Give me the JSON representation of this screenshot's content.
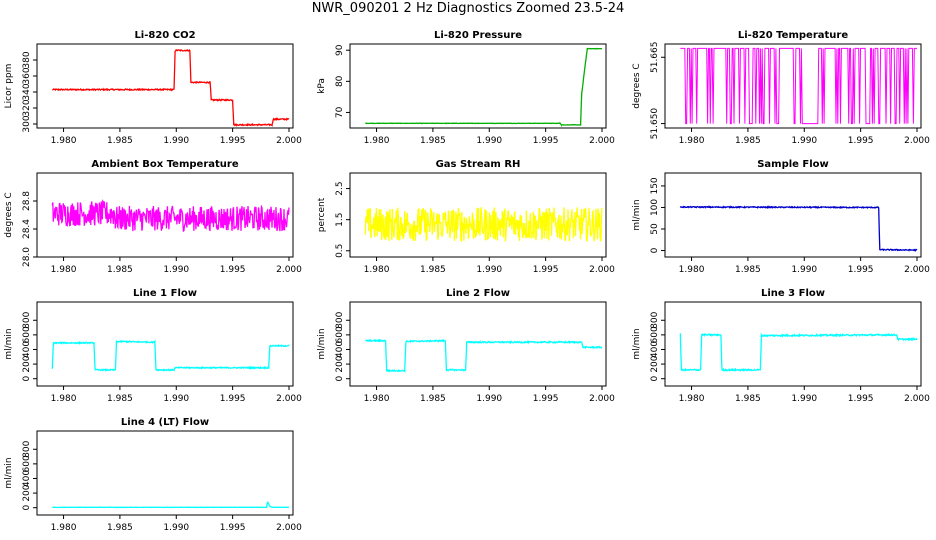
{
  "page_title": "NWR_090201  2 Hz Diagnostics Zoomed 23.5-24",
  "chart_data": [
    {
      "type": "line",
      "title": "Li-820 CO2",
      "ylabel": "Licor ppm",
      "color": "#ff0000",
      "xlim": [
        1.978,
        2.0
      ],
      "ylim": [
        295,
        400
      ],
      "xticks": [
        1.98,
        1.985,
        1.99,
        1.995,
        2.0
      ],
      "xtick_labels": [
        "1.980",
        "1.985",
        "1.990",
        "1.995",
        "2.000"
      ],
      "yticks": [
        300,
        320,
        340,
        360,
        380
      ],
      "ytick_labels": [
        "300",
        "320",
        "340",
        "360",
        "380"
      ],
      "series": [
        {
          "x": [
            1.979,
            1.9898,
            1.9899,
            1.9912,
            1.9913,
            1.993,
            1.9931,
            1.995,
            1.9951,
            1.9985,
            1.9986,
            2.0
          ],
          "y": [
            343,
            343,
            392,
            392,
            352,
            352,
            330,
            330,
            299,
            299,
            306,
            306
          ],
          "noise": 0.8
        }
      ]
    },
    {
      "type": "line",
      "title": "Li-820 Pressure",
      "ylabel": "kPa",
      "color": "#00b000",
      "xlim": [
        1.978,
        2.0
      ],
      "ylim": [
        65,
        92
      ],
      "xticks": [
        1.98,
        1.985,
        1.99,
        1.995,
        2.0
      ],
      "xtick_labels": [
        "1.980",
        "1.985",
        "1.990",
        "1.995",
        "2.000"
      ],
      "yticks": [
        70,
        80,
        90
      ],
      "ytick_labels": [
        "70",
        "80",
        "90"
      ],
      "series": [
        {
          "x": [
            1.979,
            1.9963,
            1.9964,
            1.9981,
            1.9982,
            1.9985,
            1.9987,
            2.0
          ],
          "y": [
            66.5,
            66.5,
            66.0,
            66.0,
            76.0,
            85.0,
            90.5,
            90.5
          ],
          "noise": 0.05
        }
      ]
    },
    {
      "type": "line",
      "title": "Li-820 Temperature",
      "ylabel": "degrees C",
      "color": "#ff00ff",
      "xlim": [
        1.978,
        2.0
      ],
      "ylim": [
        51.649,
        51.668
      ],
      "xticks": [
        1.98,
        1.985,
        1.99,
        1.995,
        2.0
      ],
      "xtick_labels": [
        "1.980",
        "1.985",
        "1.990",
        "1.995",
        "2.000"
      ],
      "yticks": [
        51.65,
        51.665
      ],
      "ytick_labels": [
        "51.650",
        "51.665"
      ],
      "series": [
        {
          "x": [
            1.979,
            2.0
          ],
          "y": [
            51.65,
            51.667
          ],
          "pattern": "binary",
          "gap": [
            1.9898,
            1.9912
          ]
        }
      ]
    },
    {
      "type": "line",
      "title": "Ambient Box Temperature",
      "ylabel": "degrees C",
      "color": "#ff00ff",
      "xlim": [
        1.978,
        2.0
      ],
      "ylim": [
        28.0,
        29.2
      ],
      "xticks": [
        1.98,
        1.985,
        1.99,
        1.995,
        2.0
      ],
      "xtick_labels": [
        "1.980",
        "1.985",
        "1.990",
        "1.995",
        "2.000"
      ],
      "yticks": [
        28.0,
        28.4,
        28.8
      ],
      "ytick_labels": [
        "28.0",
        "28.4",
        "28.8"
      ],
      "series": [
        {
          "x": [
            1.979,
            1.9845,
            1.9846,
            2.0
          ],
          "y": [
            28.62,
            28.62,
            28.55,
            28.55
          ],
          "noise": 0.18
        }
      ]
    },
    {
      "type": "line",
      "title": "Gas Stream RH",
      "ylabel": "percent",
      "color": "#ffff00",
      "xlim": [
        1.978,
        2.0
      ],
      "ylim": [
        0.3,
        3.0
      ],
      "xticks": [
        1.98,
        1.985,
        1.99,
        1.995,
        2.0
      ],
      "xtick_labels": [
        "1.980",
        "1.985",
        "1.990",
        "1.995",
        "2.000"
      ],
      "yticks": [
        0.5,
        1.5,
        2.5
      ],
      "ytick_labels": [
        "0.5",
        "1.5",
        "2.5"
      ],
      "series": [
        {
          "x": [
            1.979,
            2.0
          ],
          "y": [
            1.35,
            1.35
          ],
          "noise": 0.55
        }
      ]
    },
    {
      "type": "line",
      "title": "Sample Flow",
      "ylabel": "ml/min",
      "color": "#0000cc",
      "xlim": [
        1.978,
        2.0
      ],
      "ylim": [
        -15,
        180
      ],
      "xticks": [
        1.98,
        1.985,
        1.99,
        1.995,
        2.0
      ],
      "xtick_labels": [
        "1.980",
        "1.985",
        "1.990",
        "1.995",
        "2.000"
      ],
      "yticks": [
        0,
        50,
        100,
        150
      ],
      "ytick_labels": [
        "0",
        "50",
        "100",
        "150"
      ],
      "series": [
        {
          "x": [
            1.979,
            1.9966,
            1.9967,
            2.0
          ],
          "y": [
            101,
            100,
            2,
            1
          ],
          "noise": 1.2
        }
      ]
    },
    {
      "type": "line",
      "title": "Line 1 Flow",
      "ylabel": "ml/min",
      "color": "#00ffff",
      "xlim": [
        1.978,
        2.0
      ],
      "ylim": [
        -100,
        1050
      ],
      "xticks": [
        1.98,
        1.985,
        1.99,
        1.995,
        2.0
      ],
      "xtick_labels": [
        "1.980",
        "1.985",
        "1.990",
        "1.995",
        "2.000"
      ],
      "yticks": [
        0,
        200,
        400,
        600,
        800
      ],
      "ytick_labels": [
        "0",
        "200",
        "400",
        "600",
        "800"
      ],
      "series": [
        {
          "x": [
            1.979,
            1.9791,
            1.9827,
            1.9828,
            1.9846,
            1.9847,
            1.9881,
            1.9882,
            1.9898,
            1.9899,
            1.9982,
            1.9983,
            2.0
          ],
          "y": [
            130,
            490,
            490,
            120,
            120,
            510,
            500,
            120,
            120,
            150,
            150,
            450,
            450
          ],
          "noise": 8
        }
      ]
    },
    {
      "type": "line",
      "title": "Line 2 Flow",
      "ylabel": "ml/min",
      "color": "#00ffff",
      "xlim": [
        1.978,
        2.0
      ],
      "ylim": [
        -100,
        1050
      ],
      "xticks": [
        1.98,
        1.985,
        1.99,
        1.995,
        2.0
      ],
      "xtick_labels": [
        "1.980",
        "1.985",
        "1.990",
        "1.995",
        "2.000"
      ],
      "yticks": [
        0,
        200,
        400,
        600,
        800
      ],
      "ytick_labels": [
        "0",
        "200",
        "400",
        "600",
        "800"
      ],
      "series": [
        {
          "x": [
            1.979,
            1.9808,
            1.9809,
            1.9825,
            1.9826,
            1.9861,
            1.9862,
            1.9879,
            1.988,
            1.9982,
            1.9983,
            2.0
          ],
          "y": [
            520,
            520,
            110,
            110,
            510,
            520,
            120,
            120,
            500,
            500,
            430,
            430
          ],
          "noise": 9
        }
      ]
    },
    {
      "type": "line",
      "title": "Line 3 Flow",
      "ylabel": "ml/min",
      "color": "#00ffff",
      "xlim": [
        1.978,
        2.0
      ],
      "ylim": [
        -100,
        1050
      ],
      "xticks": [
        1.98,
        1.985,
        1.99,
        1.995,
        2.0
      ],
      "xtick_labels": [
        "1.980",
        "1.985",
        "1.990",
        "1.995",
        "2.000"
      ],
      "yticks": [
        0,
        200,
        400,
        600,
        800
      ],
      "ytick_labels": [
        "0",
        "200",
        "400",
        "600",
        "800"
      ],
      "series": [
        {
          "x": [
            1.979,
            1.9791,
            1.9808,
            1.9809,
            1.9826,
            1.9827,
            1.9844,
            1.9845,
            1.9861,
            1.9862,
            1.9982,
            1.9983,
            2.0
          ],
          "y": [
            620,
            120,
            120,
            600,
            600,
            120,
            120,
            120,
            120,
            590,
            600,
            540,
            540
          ],
          "noise": 10
        }
      ]
    },
    {
      "type": "line",
      "title": "Line 4 (LT) Flow",
      "ylabel": "ml/min",
      "color": "#00ffff",
      "xlim": [
        1.978,
        2.0
      ],
      "ylim": [
        -100,
        1050
      ],
      "xticks": [
        1.98,
        1.985,
        1.99,
        1.995,
        2.0
      ],
      "xtick_labels": [
        "1.980",
        "1.985",
        "1.990",
        "1.995",
        "2.000"
      ],
      "yticks": [
        0,
        200,
        400,
        600,
        800
      ],
      "ytick_labels": [
        "0",
        "200",
        "400",
        "600",
        "800"
      ],
      "series": [
        {
          "x": [
            1.979,
            1.998,
            1.9981,
            1.9983,
            1.9985,
            2.0
          ],
          "y": [
            5,
            5,
            80,
            20,
            5,
            5
          ],
          "noise": 2
        }
      ]
    }
  ]
}
